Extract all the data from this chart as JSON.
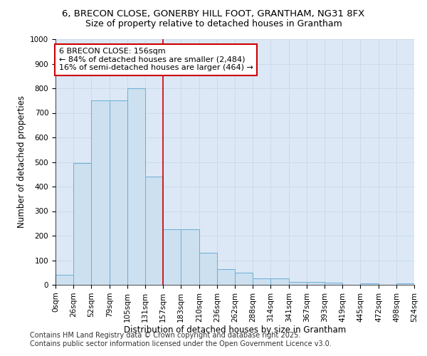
{
  "title_line1": "6, BRECON CLOSE, GONERBY HILL FOOT, GRANTHAM, NG31 8FX",
  "title_line2": "Size of property relative to detached houses in Grantham",
  "xlabel": "Distribution of detached houses by size in Grantham",
  "ylabel": "Number of detached properties",
  "bin_labels": [
    "0sqm",
    "26sqm",
    "52sqm",
    "79sqm",
    "105sqm",
    "131sqm",
    "157sqm",
    "183sqm",
    "210sqm",
    "236sqm",
    "262sqm",
    "288sqm",
    "314sqm",
    "341sqm",
    "367sqm",
    "393sqm",
    "419sqm",
    "445sqm",
    "472sqm",
    "498sqm",
    "524sqm"
  ],
  "bar_values": [
    40,
    495,
    750,
    750,
    800,
    440,
    225,
    225,
    130,
    65,
    50,
    25,
    25,
    12,
    12,
    8,
    0,
    5,
    0,
    5
  ],
  "bar_color": "#cce0f0",
  "bar_edge_color": "#6baed6",
  "red_line_x": 157,
  "annotation_text": "6 BRECON CLOSE: 156sqm\n← 84% of detached houses are smaller (2,484)\n16% of semi-detached houses are larger (464) →",
  "annotation_box_color": "#ffffff",
  "annotation_box_edge": "#cc0000",
  "ylim": [
    0,
    1000
  ],
  "yticks": [
    0,
    100,
    200,
    300,
    400,
    500,
    600,
    700,
    800,
    900,
    1000
  ],
  "grid_color": "#c8d8e8",
  "background_color": "#dce8f5",
  "footer_line1": "Contains HM Land Registry data © Crown copyright and database right 2025.",
  "footer_line2": "Contains public sector information licensed under the Open Government Licence v3.0.",
  "title_fontsize": 9.5,
  "subtitle_fontsize": 9,
  "axis_label_fontsize": 8.5,
  "tick_fontsize": 7.5,
  "annotation_fontsize": 8,
  "footer_fontsize": 7
}
